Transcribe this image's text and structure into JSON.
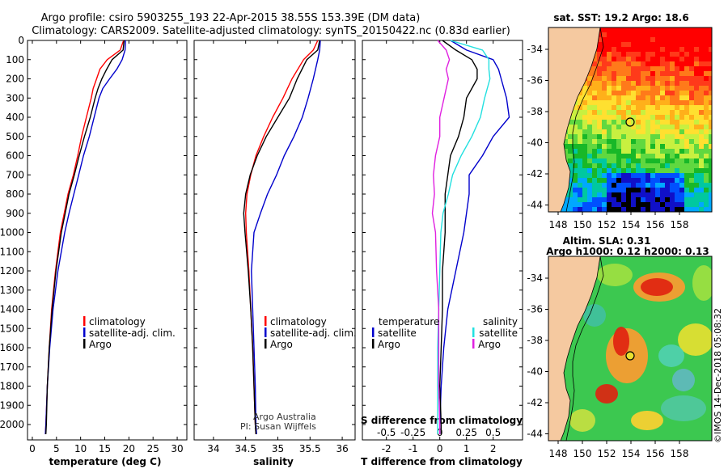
{
  "header": {
    "line1": "Argo profile: csiro 5903255_193 22-Apr-2015 38.55S 153.39E (DM data)",
    "line2": "Climatology: CARS2009. Satellite-adjusted climatology: synTS_20150422.nc (0.83d earlier)"
  },
  "colors": {
    "climatology": "#ff0000",
    "satellite": "#0000cc",
    "argo": "#000000",
    "temp_diff_argo": "#000000",
    "sal_diff_sat": "#22e0e0",
    "sal_diff_argo": "#e020e0",
    "land": "#f5c9a0",
    "ocean_bg": "#00a8ff"
  },
  "panels": {
    "credit_line1": "Argo Australia",
    "credit_line2": "PI: Susan Wijffels",
    "legend_temp_heading": "temperature",
    "legend_sal_heading": "salinity",
    "legend_diff_labels": [
      "satellite",
      "Argo"
    ],
    "legend_sal_labels": [
      "satellite",
      "Argo"
    ]
  },
  "maps": {
    "sst_title": "sat. SST: 19.2 Argo: 18.6",
    "sla_title1": "Altim. SLA: 0.31",
    "sla_title2": "Argo h1000: 0.12 h2000: 0.13",
    "lat_ticks": [
      "-34",
      "-36",
      "-38",
      "-40",
      "-42",
      "-44"
    ],
    "lon_ticks": [
      "148",
      "150",
      "152",
      "154",
      "156",
      "158"
    ],
    "stamp": "©IMOS 14-Dec-2018 05:08:32"
  },
  "chart_data": [
    {
      "type": "line",
      "id": "temperature",
      "xlabel": "temperature (deg C)",
      "ylabel": "",
      "xlim": [
        -1,
        32
      ],
      "ylim": [
        2080,
        0
      ],
      "xticks": [
        0,
        5,
        10,
        15,
        20,
        25,
        30
      ],
      "yticks": [
        0,
        100,
        200,
        300,
        400,
        500,
        600,
        700,
        800,
        900,
        1000,
        1100,
        1200,
        1300,
        1400,
        1500,
        1600,
        1700,
        1800,
        1900,
        2000
      ],
      "legend": [
        "climatology",
        "satellite-adj. clim.",
        "Argo"
      ],
      "series": [
        {
          "name": "climatology",
          "depth": [
            0,
            50,
            100,
            150,
            200,
            250,
            300,
            400,
            500,
            600,
            700,
            800,
            900,
            1000,
            1200,
            1400,
            1600,
            1800,
            2000,
            2050
          ],
          "values": [
            18.9,
            18.2,
            15.5,
            14.0,
            13.3,
            12.6,
            12.2,
            11.2,
            10.2,
            9.4,
            8.5,
            7.4,
            6.6,
            5.8,
            4.8,
            4.0,
            3.5,
            3.1,
            2.8,
            2.7
          ]
        },
        {
          "name": "satellite-adj. clim.",
          "depth": [
            0,
            50,
            100,
            150,
            200,
            250,
            300,
            400,
            500,
            600,
            700,
            800,
            900,
            1000,
            1200,
            1400,
            1600,
            1800,
            2000,
            2050
          ],
          "values": [
            19.3,
            19.2,
            18.6,
            17.5,
            16.0,
            14.6,
            13.8,
            12.8,
            11.8,
            10.6,
            9.6,
            8.6,
            7.6,
            6.7,
            5.3,
            4.3,
            3.6,
            3.1,
            2.8,
            2.7
          ]
        },
        {
          "name": "Argo",
          "depth": [
            0,
            50,
            100,
            150,
            200,
            250,
            300,
            400,
            500,
            600,
            700,
            800,
            900,
            1000,
            1200,
            1400,
            1600,
            1800,
            2000,
            2050
          ],
          "values": [
            19.0,
            18.8,
            16.5,
            15.4,
            14.4,
            13.6,
            13.0,
            12.0,
            10.8,
            9.7,
            8.7,
            7.6,
            6.8,
            6.0,
            4.9,
            4.1,
            3.5,
            3.1,
            2.9,
            2.8
          ]
        }
      ]
    },
    {
      "type": "line",
      "id": "salinity",
      "xlabel": "salinity",
      "xlim": [
        33.7,
        36.2
      ],
      "ylim": [
        2080,
        0
      ],
      "xticks": [
        34,
        34.5,
        35,
        35.5,
        36
      ],
      "xticklabels": [
        "34",
        "34.5",
        "35",
        "35.5",
        "36"
      ],
      "legend": [
        "climatology",
        "satellite-adj. clim.",
        "Argo"
      ],
      "series": [
        {
          "name": "climatology",
          "depth": [
            0,
            50,
            100,
            200,
            300,
            400,
            500,
            600,
            700,
            800,
            900,
            1000,
            1200,
            1400,
            1600,
            1800,
            2000,
            2050
          ],
          "values": [
            35.62,
            35.55,
            35.4,
            35.22,
            35.08,
            34.92,
            34.78,
            34.66,
            34.58,
            34.52,
            34.5,
            34.51,
            34.55,
            34.58,
            34.61,
            34.63,
            34.65,
            34.66
          ]
        },
        {
          "name": "satellite-adj. clim.",
          "depth": [
            0,
            50,
            100,
            200,
            300,
            400,
            500,
            600,
            700,
            800,
            900,
            1000,
            1200,
            1400,
            1600,
            1800,
            2000,
            2050
          ],
          "values": [
            35.66,
            35.65,
            35.62,
            35.55,
            35.47,
            35.38,
            35.25,
            35.1,
            34.98,
            34.84,
            34.73,
            34.63,
            34.59,
            34.61,
            34.63,
            34.65,
            34.66,
            34.67
          ]
        },
        {
          "name": "Argo",
          "depth": [
            0,
            50,
            100,
            200,
            300,
            400,
            500,
            600,
            700,
            800,
            900,
            1000,
            1200,
            1400,
            1600,
            1800,
            2000,
            2050
          ],
          "values": [
            35.65,
            35.62,
            35.45,
            35.3,
            35.18,
            35.0,
            34.82,
            34.68,
            34.57,
            34.5,
            34.47,
            34.49,
            34.54,
            34.58,
            34.61,
            34.63,
            34.65,
            34.66
          ]
        }
      ]
    },
    {
      "type": "line",
      "id": "difference",
      "xlabel": "T difference from climatology",
      "xlabel_top": "S difference from climatology",
      "xlim": [
        -2.9,
        3.1
      ],
      "ylim": [
        2080,
        0
      ],
      "xticks": [
        -2,
        -1,
        0,
        1,
        2
      ],
      "xticks_top": [
        -0.5,
        -0.25,
        0,
        0.25,
        0.5
      ],
      "xticklabels_top": [
        "-0.5",
        "-0.25",
        "0",
        "0.25",
        "0.5"
      ],
      "legend": [
        "temperature satellite",
        "temperature Argo",
        "salinity satellite",
        "salinity Argo"
      ],
      "series": [
        {
          "name": "temperature satellite",
          "depth": [
            0,
            50,
            100,
            150,
            200,
            300,
            400,
            500,
            600,
            700,
            800,
            900,
            1000,
            1200,
            1400,
            1600,
            1800,
            2000,
            2050
          ],
          "values": [
            0.4,
            1.0,
            2.0,
            2.2,
            2.3,
            2.5,
            2.6,
            2.0,
            1.6,
            1.1,
            1.1,
            1.0,
            0.9,
            0.6,
            0.3,
            0.15,
            0.05,
            0.0,
            0.0
          ]
        },
        {
          "name": "temperature Argo",
          "depth": [
            0,
            50,
            100,
            150,
            200,
            300,
            400,
            500,
            600,
            700,
            800,
            900,
            1000,
            1200,
            1400,
            1600,
            1800,
            2000,
            2050
          ],
          "values": [
            0.1,
            0.6,
            1.2,
            1.4,
            1.4,
            1.0,
            0.9,
            0.7,
            0.4,
            0.3,
            0.2,
            0.2,
            0.2,
            0.1,
            0.1,
            0.05,
            0.0,
            0.05,
            0.05
          ]
        },
        {
          "name": "salinity satellite",
          "depth": [
            0,
            50,
            100,
            150,
            200,
            300,
            400,
            500,
            600,
            700,
            800,
            900,
            1000,
            1200,
            1400,
            1600,
            1800,
            2000,
            2050
          ],
          "values": [
            0.1,
            0.4,
            0.46,
            0.46,
            0.47,
            0.42,
            0.38,
            0.3,
            0.2,
            0.12,
            0.08,
            0.03,
            0.01,
            0.0,
            -0.01,
            -0.02,
            -0.02,
            -0.02,
            -0.02
          ]
        },
        {
          "name": "salinity Argo",
          "depth": [
            0,
            50,
            100,
            150,
            200,
            300,
            400,
            500,
            600,
            700,
            800,
            900,
            1000,
            1200,
            1400,
            1600,
            1800,
            2000,
            2050
          ],
          "values": [
            -0.02,
            0.06,
            0.09,
            0.06,
            0.08,
            0.04,
            0.0,
            0.0,
            -0.04,
            -0.06,
            -0.05,
            -0.07,
            -0.04,
            -0.03,
            -0.01,
            -0.01,
            -0.01,
            0.0,
            0.0
          ]
        }
      ]
    }
  ]
}
